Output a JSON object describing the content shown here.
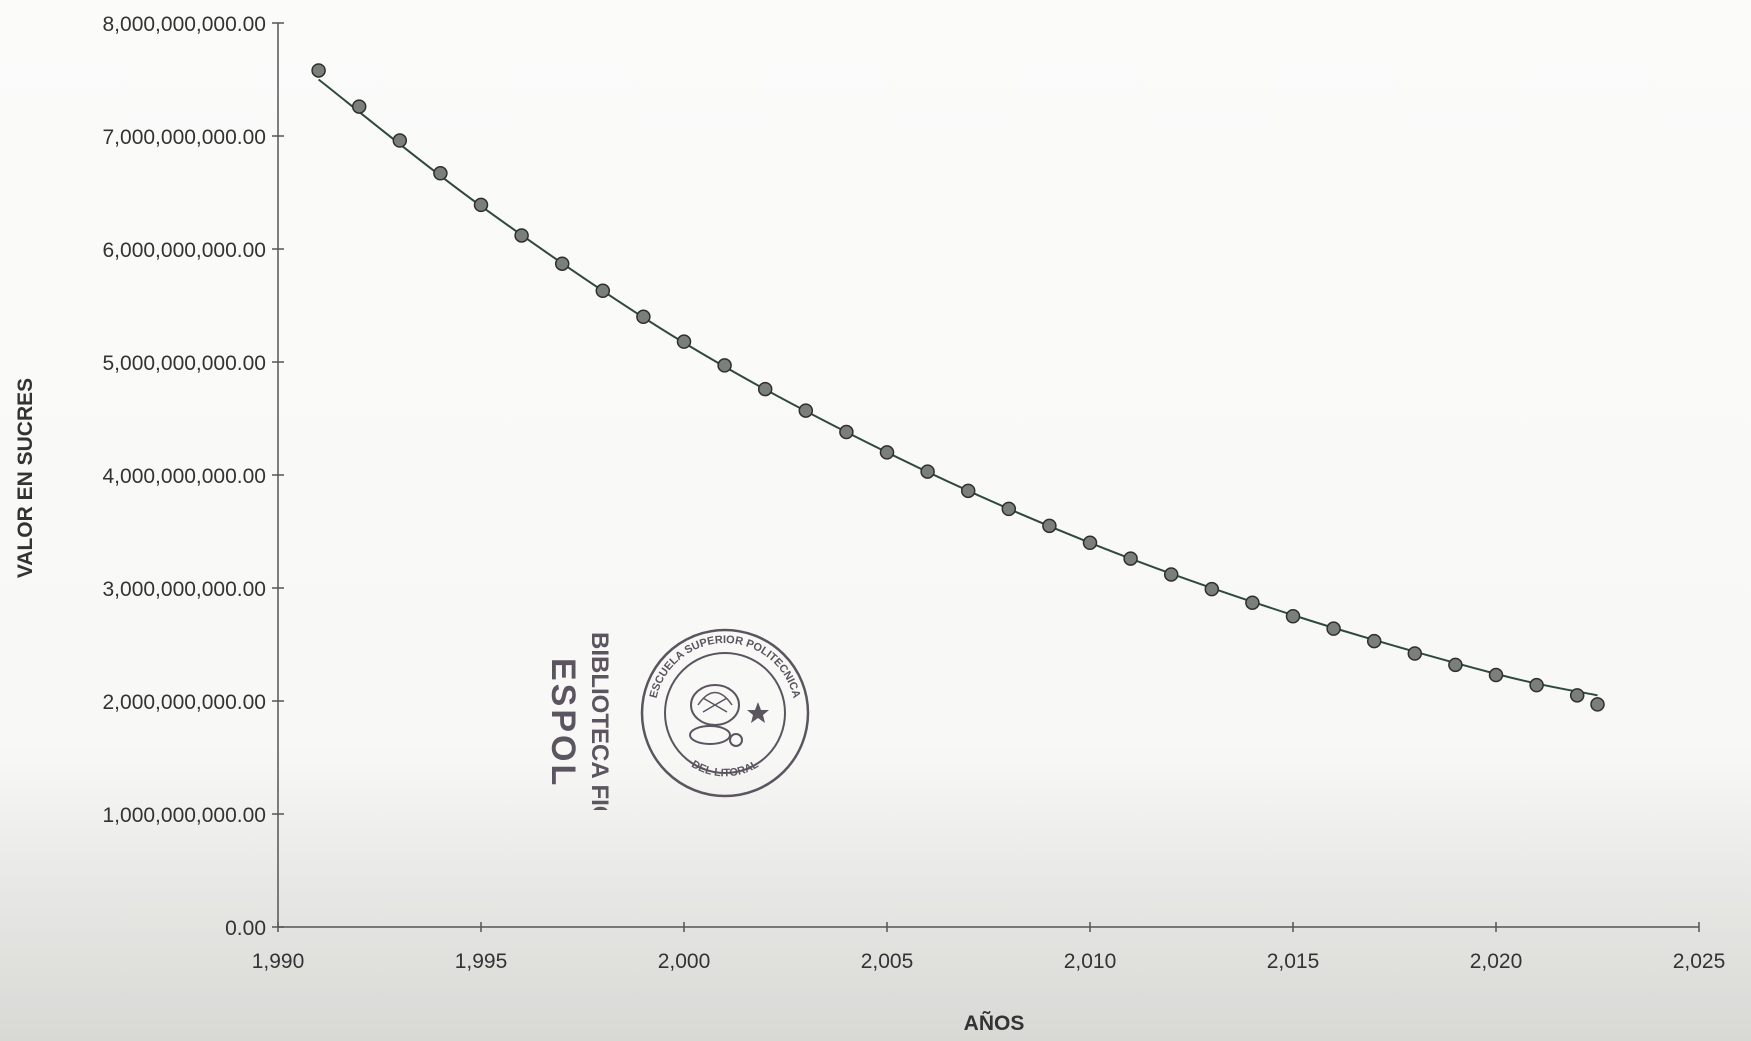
{
  "chart_data": {
    "type": "scatter",
    "xlabel": "AÑOS",
    "ylabel": "VALOR EN SUCRES",
    "xlim": [
      1990,
      2025
    ],
    "ylim": [
      0,
      8000000000
    ],
    "x_ticks": [
      1990,
      1995,
      2000,
      2005,
      2010,
      2015,
      2020,
      2025
    ],
    "x_tick_labels": [
      "1,990",
      "1,995",
      "2,000",
      "2,005",
      "2,010",
      "2,015",
      "2,020",
      "2,025"
    ],
    "y_ticks": [
      0,
      1000000000,
      2000000000,
      3000000000,
      4000000000,
      5000000000,
      6000000000,
      7000000000,
      8000000000
    ],
    "y_tick_labels": [
      "0.00",
      "1,000,000,000.00",
      "2,000,000,000.00",
      "3,000,000,000.00",
      "4,000,000,000.00",
      "5,000,000,000.00",
      "6,000,000,000.00",
      "7,000,000,000.00",
      "8,000,000,000.00"
    ],
    "grid": false,
    "series": [
      {
        "kind": "points",
        "x": [
          1991,
          1992,
          1993,
          1994,
          1995,
          1996,
          1997,
          1998,
          1999,
          2000,
          2001,
          2002,
          2003,
          2004,
          2005,
          2006,
          2007,
          2008,
          2009,
          2010,
          2011,
          2012,
          2013,
          2014,
          2015,
          2016,
          2017,
          2018,
          2019,
          2020,
          2021,
          2022,
          2022.5
        ],
        "y": [
          7580000000,
          7260000000,
          6960000000,
          6670000000,
          6390000000,
          6120000000,
          5870000000,
          5630000000,
          5400000000,
          5180000000,
          4970000000,
          4760000000,
          4570000000,
          4380000000,
          4200000000,
          4030000000,
          3860000000,
          3700000000,
          3550000000,
          3400000000,
          3260000000,
          3120000000,
          2990000000,
          2870000000,
          2750000000,
          2640000000,
          2530000000,
          2420000000,
          2320000000,
          2230000000,
          2140000000,
          2050000000,
          1970000000
        ],
        "color": "#7a7f7a"
      },
      {
        "kind": "trend-line",
        "x": [
          1991,
          1995,
          2000,
          2005,
          2010,
          2015,
          2020,
          2022.5
        ],
        "y": [
          7500000000,
          6380000000,
          5170000000,
          4200000000,
          3400000000,
          2760000000,
          2240000000,
          2050000000
        ],
        "color": "#2f4a3c"
      }
    ]
  },
  "stamp": {
    "line1": "BIBLIOTECA FICT",
    "line2": "ESPOL",
    "seal_top": "ESCUELA SUPERIOR POLITECNICA",
    "seal_bottom": "DEL LITORAL",
    "seal_left": "ESPOL",
    "color": "#5b5560"
  }
}
